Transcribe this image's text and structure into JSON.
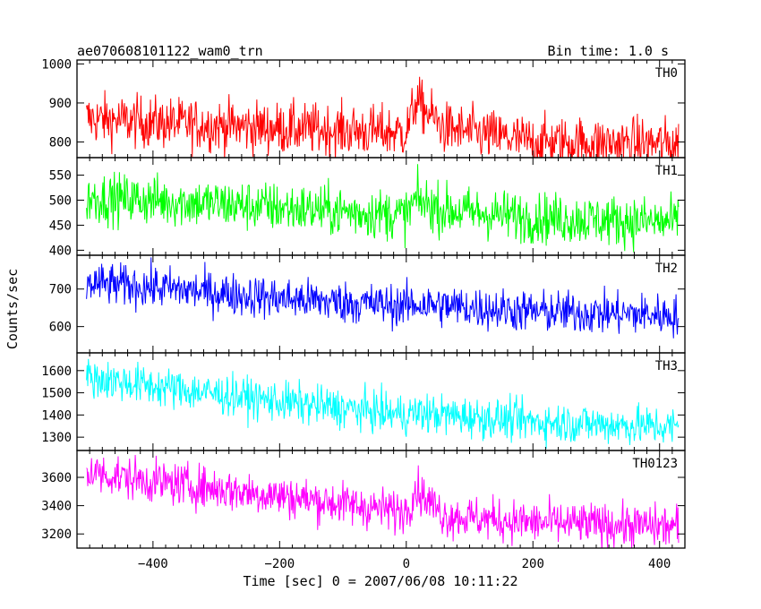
{
  "header": {
    "title": "ae070608101122_wam0_trn",
    "bin_time": "Bin time: 1.0 s"
  },
  "axes": {
    "ylabel": "Counts/sec",
    "xlabel": "Time [sec] 0 = 2007/06/08 10:11:22"
  },
  "chart_data": {
    "type": "line",
    "title": "ae070608101122_wam0_trn",
    "xlabel": "Time [sec] 0 = 2007/06/08 10:11:22",
    "ylabel": "Counts/sec",
    "xlim": [
      -520,
      440
    ],
    "xticks": [
      -400,
      -200,
      0,
      200,
      400
    ],
    "xtick_labels": [
      "−400",
      "−200",
      "0",
      "200",
      "400"
    ],
    "data_range": [
      -505,
      430
    ],
    "bin_time_s": 1.0,
    "grid": false,
    "panels": [
      {
        "name": "TH0",
        "color": "#ff0000",
        "ylim": [
          760,
          1010
        ],
        "yticks": [
          800,
          900,
          1000
        ],
        "trend": [
          [
            -505,
            860
          ],
          [
            -400,
            850
          ],
          [
            -200,
            835
          ],
          [
            -10,
            825
          ],
          [
            0,
            825
          ],
          [
            15,
            905
          ],
          [
            60,
            835
          ],
          [
            200,
            800
          ],
          [
            430,
            795
          ]
        ],
        "noise_sd": 33
      },
      {
        "name": "TH1",
        "color": "#00ff00",
        "ylim": [
          390,
          585
        ],
        "yticks": [
          400,
          450,
          500,
          550
        ],
        "trend": [
          [
            -505,
            505
          ],
          [
            -400,
            500
          ],
          [
            -200,
            485
          ],
          [
            0,
            470
          ],
          [
            15,
            500
          ],
          [
            60,
            480
          ],
          [
            200,
            465
          ],
          [
            430,
            455
          ]
        ],
        "noise_sd": 25
      },
      {
        "name": "TH2",
        "color": "#0000ff",
        "ylim": [
          530,
          790
        ],
        "yticks": [
          600,
          700
        ],
        "trend": [
          [
            -505,
            715
          ],
          [
            -400,
            705
          ],
          [
            -200,
            675
          ],
          [
            0,
            655
          ],
          [
            15,
            660
          ],
          [
            200,
            640
          ],
          [
            430,
            630
          ]
        ],
        "noise_sd": 28
      },
      {
        "name": "TH3",
        "color": "#00ffff",
        "ylim": [
          1240,
          1680
        ],
        "yticks": [
          1300,
          1400,
          1500,
          1600
        ],
        "trend": [
          [
            -505,
            1570
          ],
          [
            -400,
            1530
          ],
          [
            -200,
            1460
          ],
          [
            0,
            1400
          ],
          [
            15,
            1410
          ],
          [
            200,
            1370
          ],
          [
            430,
            1345
          ]
        ],
        "noise_sd": 45
      },
      {
        "name": "TH0123",
        "color": "#ff00ff",
        "ylim": [
          3100,
          3790
        ],
        "yticks": [
          3200,
          3400,
          3600
        ],
        "trend": [
          [
            -505,
            3640
          ],
          [
            -400,
            3570
          ],
          [
            -200,
            3470
          ],
          [
            -10,
            3360
          ],
          [
            0,
            3370
          ],
          [
            15,
            3520
          ],
          [
            60,
            3330
          ],
          [
            200,
            3280
          ],
          [
            430,
            3250
          ]
        ],
        "noise_sd": 75
      }
    ]
  }
}
